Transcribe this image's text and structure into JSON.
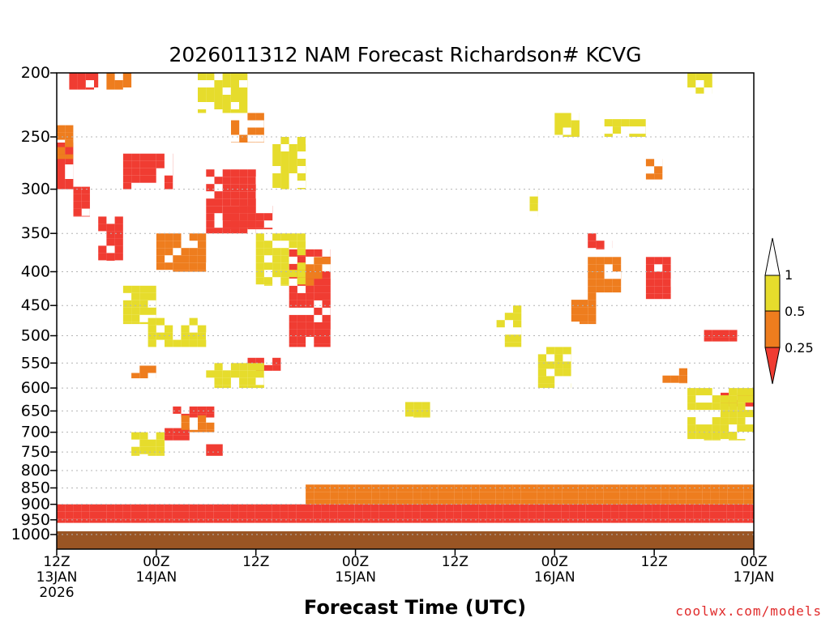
{
  "chart_data": {
    "type": "heatmap",
    "title": "2026011312 NAM Forecast Richardson# KCVG",
    "xlabel": "Forecast Time (UTC)",
    "ylabel": "",
    "credit": "coolwx.com/models",
    "x_range_hours": [
      0,
      84
    ],
    "y_range_hpa": [
      200,
      1000
    ],
    "y_scale": "log",
    "grid": "dotted horizontal lines at labeled pressure levels",
    "y_ticks": [
      "200",
      "250",
      "300",
      "350",
      "400",
      "450",
      "500",
      "550",
      "600",
      "650",
      "700",
      "750",
      "800",
      "850",
      "900",
      "950",
      "1000"
    ],
    "x_ticks": [
      {
        "hour": 0,
        "line1": "12Z",
        "line2": "13JAN",
        "line3": "2026"
      },
      {
        "hour": 12,
        "line1": "00Z",
        "line2": "14JAN",
        "line3": ""
      },
      {
        "hour": 24,
        "line1": "12Z",
        "line2": "",
        "line3": ""
      },
      {
        "hour": 36,
        "line1": "00Z",
        "line2": "15JAN",
        "line3": ""
      },
      {
        "hour": 48,
        "line1": "12Z",
        "line2": "",
        "line3": ""
      },
      {
        "hour": 60,
        "line1": "00Z",
        "line2": "16JAN",
        "line3": ""
      },
      {
        "hour": 72,
        "line1": "12Z",
        "line2": "",
        "line3": ""
      },
      {
        "hour": 84,
        "line1": "00Z",
        "line2": "17JAN",
        "line3": ""
      }
    ],
    "legend": {
      "placement": "right",
      "bins": [
        {
          "range": "< 0.25",
          "color": "#f03c32"
        },
        {
          "range": "0.25 - 0.5",
          "color": "#ee7d1e"
        },
        {
          "range": "0.5 - 1",
          "color": "#e6dc2c"
        },
        {
          "range": "> 1",
          "color": "#ffffff"
        }
      ],
      "labels": [
        "1",
        "0.5",
        "0.25"
      ]
    },
    "ground": {
      "color": "#9a5524",
      "description": "below-ground layer near 1000 hPa"
    },
    "series": [
      {
        "category": "<0.25",
        "color": "#f03c32",
        "regions": [
          {
            "h": [
              1.5,
              5
            ],
            "p": [
              200,
              212
            ]
          },
          {
            "h": [
              0,
              2
            ],
            "p": [
              255,
              300
            ]
          },
          {
            "h": [
              2,
              4
            ],
            "p": [
              290,
              330
            ]
          },
          {
            "h": [
              8,
              14
            ],
            "p": [
              265,
              300
            ]
          },
          {
            "h": [
              18,
              24
            ],
            "p": [
              280,
              350
            ]
          },
          {
            "h": [
              20,
              26
            ],
            "p": [
              310,
              345
            ]
          },
          {
            "h": [
              5,
              8
            ],
            "p": [
              330,
              385
            ]
          },
          {
            "h": [
              28,
              33
            ],
            "p": [
              370,
              520
            ]
          },
          {
            "h": [
              23,
              27
            ],
            "p": [
              540,
              565
            ]
          },
          {
            "h": [
              14,
              19
            ],
            "p": [
              640,
              665
            ]
          },
          {
            "h": [
              13,
              16
            ],
            "p": [
              690,
              720
            ]
          },
          {
            "h": [
              18,
              20
            ],
            "p": [
              730,
              760
            ]
          },
          {
            "h": [
              64,
              67
            ],
            "p": [
              350,
              370
            ]
          },
          {
            "h": [
              71,
              74
            ],
            "p": [
              380,
              440
            ]
          },
          {
            "h": [
              78,
              82
            ],
            "p": [
              490,
              510
            ]
          },
          {
            "h": [
              80,
              84
            ],
            "p": [
              610,
              640
            ]
          },
          {
            "h": [
              0,
              84
            ],
            "p": [
              900,
              960
            ]
          }
        ]
      },
      {
        "category": "0.25-0.5",
        "color": "#ee7d1e",
        "regions": [
          {
            "h": [
              6,
              9
            ],
            "p": [
              200,
              212
            ]
          },
          {
            "h": [
              0,
              2
            ],
            "p": [
              240,
              270
            ]
          },
          {
            "h": [
              21,
              25
            ],
            "p": [
              230,
              255
            ]
          },
          {
            "h": [
              12,
              18
            ],
            "p": [
              350,
              400
            ]
          },
          {
            "h": [
              30,
              33
            ],
            "p": [
              380,
              420
            ]
          },
          {
            "h": [
              9,
              12
            ],
            "p": [
              555,
              580
            ]
          },
          {
            "h": [
              15,
              19
            ],
            "p": [
              660,
              700
            ]
          },
          {
            "h": [
              62,
              65
            ],
            "p": [
              430,
              480
            ]
          },
          {
            "h": [
              64,
              68
            ],
            "p": [
              380,
              430
            ]
          },
          {
            "h": [
              71,
              73
            ],
            "p": [
              270,
              290
            ]
          },
          {
            "h": [
              73,
              76
            ],
            "p": [
              560,
              590
            ]
          },
          {
            "h": [
              30,
              84
            ],
            "p": [
              840,
              900
            ]
          }
        ]
      },
      {
        "category": "0.5-1",
        "color": "#e6dc2c",
        "regions": [
          {
            "h": [
              17,
              23
            ],
            "p": [
              200,
              230
            ]
          },
          {
            "h": [
              26,
              30
            ],
            "p": [
              250,
              300
            ]
          },
          {
            "h": [
              24,
              30
            ],
            "p": [
              350,
              420
            ]
          },
          {
            "h": [
              8,
              12
            ],
            "p": [
              420,
              480
            ]
          },
          {
            "h": [
              18,
              25
            ],
            "p": [
              550,
              600
            ]
          },
          {
            "h": [
              11,
              18
            ],
            "p": [
              470,
              520
            ]
          },
          {
            "h": [
              56,
              58
            ],
            "p": [
              300,
              330
            ]
          },
          {
            "h": [
              60,
              63
            ],
            "p": [
              230,
              250
            ]
          },
          {
            "h": [
              66,
              71
            ],
            "p": [
              235,
              250
            ]
          },
          {
            "h": [
              76,
              79
            ],
            "p": [
              200,
              215
            ]
          },
          {
            "h": [
              53,
              56
            ],
            "p": [
              450,
              520
            ]
          },
          {
            "h": [
              58,
              62
            ],
            "p": [
              520,
              600
            ]
          },
          {
            "h": [
              76,
              84
            ],
            "p": [
              600,
              720
            ]
          },
          {
            "h": [
              42,
              45
            ],
            "p": [
              630,
              665
            ]
          },
          {
            "h": [
              9,
              13
            ],
            "p": [
              700,
              760
            ]
          }
        ]
      }
    ]
  }
}
